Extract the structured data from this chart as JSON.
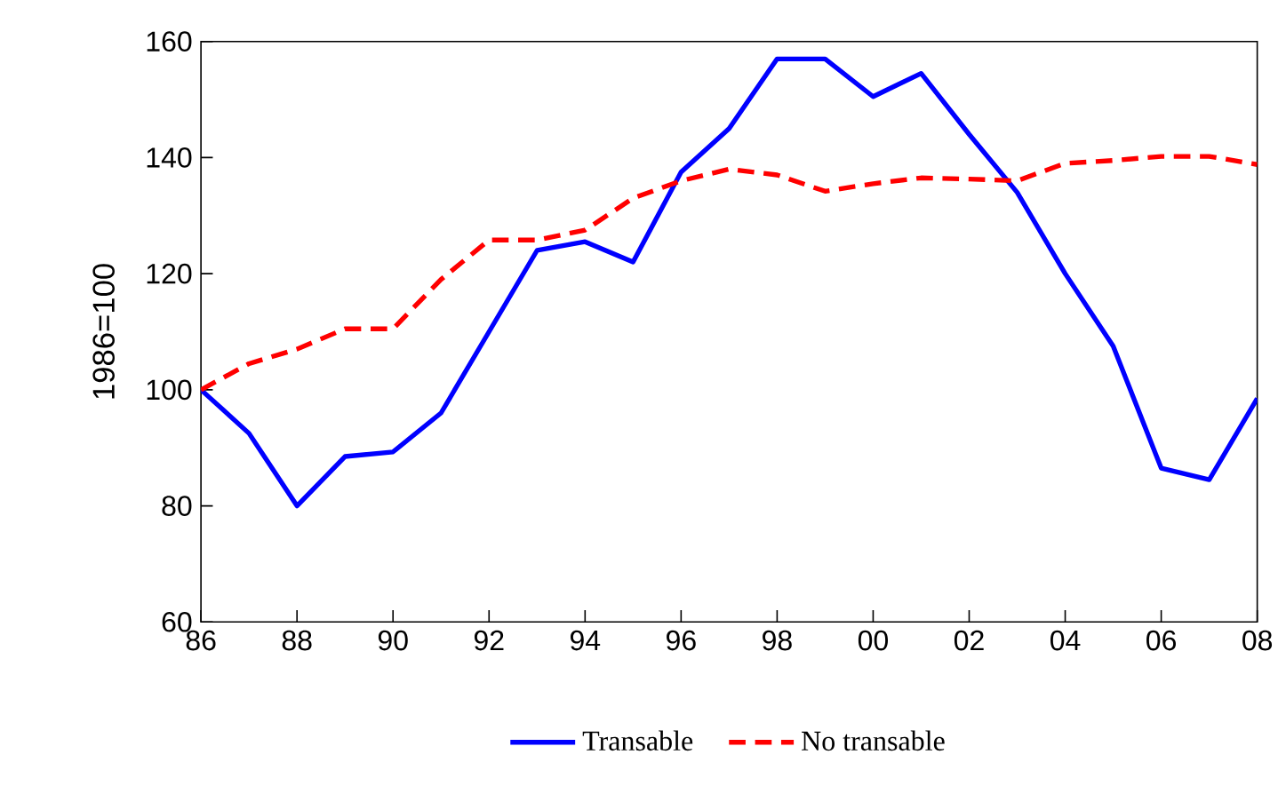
{
  "chart_data": {
    "type": "line",
    "ylabel": "1986=100",
    "x": [
      1986,
      1987,
      1988,
      1989,
      1990,
      1991,
      1992,
      1993,
      1994,
      1995,
      1996,
      1997,
      1998,
      1999,
      2000,
      2001,
      2002,
      2003,
      2004,
      2005,
      2006,
      2007,
      2008
    ],
    "series": [
      {
        "name": "Transable",
        "color": "#0000ff",
        "line_style": "solid",
        "values": [
          100,
          92.5,
          80,
          88.5,
          89.3,
          96,
          110,
          124,
          125.5,
          122,
          137.5,
          145,
          157,
          157,
          150.5,
          154.5,
          144,
          134,
          120,
          107.5,
          86.5,
          84.5,
          98.5
        ]
      },
      {
        "name": "No transable",
        "color": "#ff0000",
        "line_style": "dashed",
        "values": [
          100,
          104.5,
          107,
          110.5,
          110.5,
          119,
          125.8,
          125.8,
          127.5,
          133,
          136,
          138,
          137,
          134.2,
          135.5,
          136.5,
          136.3,
          136,
          139,
          139.5,
          140.2,
          140.2,
          138.8
        ]
      }
    ],
    "xlim": [
      1986,
      2008
    ],
    "ylim": [
      60,
      160
    ],
    "xticks": [
      {
        "value": 1986,
        "label": "86"
      },
      {
        "value": 1988,
        "label": "88"
      },
      {
        "value": 1990,
        "label": "90"
      },
      {
        "value": 1992,
        "label": "92"
      },
      {
        "value": 1994,
        "label": "94"
      },
      {
        "value": 1996,
        "label": "96"
      },
      {
        "value": 1998,
        "label": "98"
      },
      {
        "value": 2000,
        "label": "00"
      },
      {
        "value": 2002,
        "label": "02"
      },
      {
        "value": 2004,
        "label": "04"
      },
      {
        "value": 2006,
        "label": "06"
      },
      {
        "value": 2008,
        "label": "08"
      }
    ],
    "yticks": [
      60,
      80,
      100,
      120,
      140,
      160
    ],
    "legend": "bottom",
    "marker": "none"
  }
}
